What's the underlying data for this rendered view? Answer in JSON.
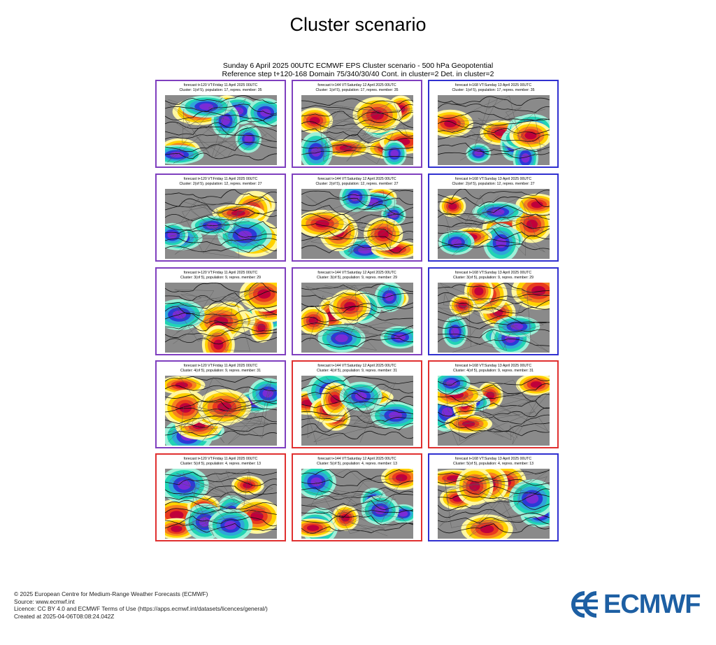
{
  "page": {
    "title": "Cluster scenario"
  },
  "figure": {
    "header_line1": "Sunday 6 April 2025 00UTC ECMWF EPS Cluster scenario - 500 hPa Geopotential",
    "header_line2": "Reference step t+120-168 Domain 75/340/30/40 Cont. in cluster=2 Det. in cluster=2"
  },
  "colors": {
    "purple": "#7f3fbf",
    "red": "#e03030",
    "blue": "#3030d0"
  },
  "panels": [
    {
      "line1": "forecast t+120 VT:Friday 11 April 2025 00UTC",
      "line2": "Cluster: 1(of 5), population: 17, repres. member: 35",
      "border": "purple"
    },
    {
      "line1": "forecast t+144 VT:Saturday 12 April 2025 00UTC",
      "line2": "Cluster: 1(of 5), population: 17, repres. member: 35",
      "border": "purple"
    },
    {
      "line1": "forecast t+168 VT:Sunday 13 April 2025 00UTC",
      "line2": "Cluster: 1(of 5), population: 17, repres. member: 35",
      "border": "blue"
    },
    {
      "line1": "forecast t+120 VT:Friday 11 April 2025 00UTC",
      "line2": "Cluster: 2(of 5), population: 12, repres. member: 27",
      "border": "purple"
    },
    {
      "line1": "forecast t+144 VT:Saturday 12 April 2025 00UTC",
      "line2": "Cluster: 2(of 5), population: 12, repres. member: 27",
      "border": "purple"
    },
    {
      "line1": "forecast t+168 VT:Sunday 13 April 2025 00UTC",
      "line2": "Cluster: 2(of 5), population: 12, repres. member: 27",
      "border": "blue"
    },
    {
      "line1": "forecast t+120 VT:Friday 11 April 2025 00UTC",
      "line2": "Cluster: 3(of 5), population: 9, repres. member: 29",
      "border": "purple"
    },
    {
      "line1": "forecast t+144 VT:Saturday 12 April 2025 00UTC",
      "line2": "Cluster: 3(of 5), population: 9, repres. member: 29",
      "border": "purple"
    },
    {
      "line1": "forecast t+168 VT:Sunday 13 April 2025 00UTC",
      "line2": "Cluster: 3(of 5), population: 9, repres. member: 29",
      "border": "blue"
    },
    {
      "line1": "forecast t+120 VT:Friday 11 April 2025 00UTC",
      "line2": "Cluster: 4(of 5), population: 9, repres. member: 31",
      "border": "purple"
    },
    {
      "line1": "forecast t+144 VT:Saturday 12 April 2025 00UTC",
      "line2": "Cluster: 4(of 5), population: 9, repres. member: 31",
      "border": "red"
    },
    {
      "line1": "forecast t+168 VT:Sunday 13 April 2025 00UTC",
      "line2": "Cluster: 4(of 5), population: 9, repres. member: 31",
      "border": "red"
    },
    {
      "line1": "forecast t+120 VT:Friday 11 April 2025 00UTC",
      "line2": "Cluster: 5(of 5), population: 4, repres. member: 13",
      "border": "red"
    },
    {
      "line1": "forecast t+144 VT:Saturday 12 April 2025 00UTC",
      "line2": "Cluster: 5(of 5), population: 4, repres. member: 13",
      "border": "red"
    },
    {
      "line1": "forecast t+168 VT:Sunday 13 April 2025 00UTC",
      "line2": "Cluster: 5(of 5), population: 4, repres. member: 13",
      "border": "blue"
    }
  ],
  "footer": {
    "copyright": "© 2025 European Centre for Medium-Range Weather Forecasts (ECMWF)",
    "source": "Source: www.ecmwf.int",
    "licence": "Licence: CC BY 4.0 and ECMWF Terms of Use (https://apps.ecmwf.int/datasets/licences/general/)",
    "created": "Created at 2025-04-06T08:08:24.042Z"
  },
  "logo": {
    "text": "ECMWF",
    "icon": "ecmwf-logo-icon"
  }
}
